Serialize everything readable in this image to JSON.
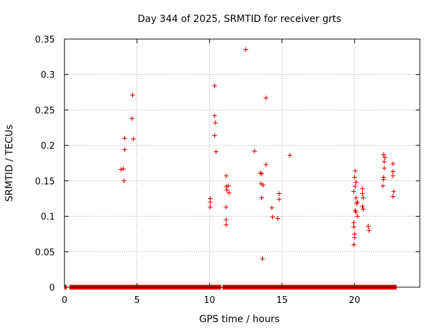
{
  "chart_data": {
    "type": "scatter",
    "title": "Day 344 of 2025, SRMTID for receiver grts",
    "xlabel": "GPS time / hours",
    "ylabel": "SRMTID / TECUs",
    "xlim": [
      0,
      24.5
    ],
    "ylim": [
      0,
      0.35
    ],
    "xticks": [
      0,
      5,
      10,
      15,
      20
    ],
    "yticks": [
      0,
      0.05,
      0.1,
      0.15,
      0.2,
      0.25,
      0.3,
      0.35
    ],
    "xtick_labels": [
      "0",
      "5",
      "10",
      "15",
      "20"
    ],
    "ytick_labels": [
      "0",
      "0.05",
      "0.1",
      "0.15",
      "0.2",
      "0.25",
      "0.3",
      "0.35"
    ],
    "grid": true,
    "marker": "plus",
    "color": "#dd0000",
    "baseline_segments": [
      [
        0,
        0.15
      ],
      [
        0.35,
        10.8
      ],
      [
        10.9,
        22.9
      ]
    ],
    "points": [
      [
        3.9,
        0.166
      ],
      [
        4.05,
        0.167
      ],
      [
        4.1,
        0.15
      ],
      [
        4.15,
        0.194
      ],
      [
        4.15,
        0.21
      ],
      [
        4.65,
        0.238
      ],
      [
        4.7,
        0.271
      ],
      [
        4.75,
        0.209
      ],
      [
        10.05,
        0.125
      ],
      [
        10.05,
        0.12
      ],
      [
        10.05,
        0.113
      ],
      [
        10.35,
        0.284
      ],
      [
        10.35,
        0.242
      ],
      [
        10.4,
        0.232
      ],
      [
        10.35,
        0.214
      ],
      [
        10.45,
        0.191
      ],
      [
        11.15,
        0.157
      ],
      [
        11.15,
        0.142
      ],
      [
        11.2,
        0.137
      ],
      [
        11.3,
        0.143
      ],
      [
        11.35,
        0.133
      ],
      [
        11.15,
        0.113
      ],
      [
        11.15,
        0.095
      ],
      [
        11.15,
        0.088
      ],
      [
        12.5,
        0.335
      ],
      [
        13.1,
        0.192
      ],
      [
        13.5,
        0.161
      ],
      [
        13.6,
        0.16
      ],
      [
        13.55,
        0.146
      ],
      [
        13.7,
        0.144
      ],
      [
        13.6,
        0.126
      ],
      [
        13.65,
        0.04
      ],
      [
        13.9,
        0.267
      ],
      [
        13.9,
        0.173
      ],
      [
        14.3,
        0.112
      ],
      [
        14.35,
        0.099
      ],
      [
        14.7,
        0.097
      ],
      [
        14.8,
        0.132
      ],
      [
        14.8,
        0.124
      ],
      [
        15.55,
        0.186
      ],
      [
        19.95,
        0.135
      ],
      [
        20.0,
        0.155
      ],
      [
        20.05,
        0.164
      ],
      [
        20.1,
        0.148
      ],
      [
        20.05,
        0.142
      ],
      [
        20.1,
        0.126
      ],
      [
        20.15,
        0.118
      ],
      [
        20.05,
        0.108
      ],
      [
        20.1,
        0.106
      ],
      [
        20.2,
        0.1
      ],
      [
        19.95,
        0.091
      ],
      [
        19.95,
        0.085
      ],
      [
        20.0,
        0.075
      ],
      [
        20.0,
        0.07
      ],
      [
        19.95,
        0.06
      ],
      [
        20.2,
        0.12
      ],
      [
        20.55,
        0.139
      ],
      [
        20.55,
        0.132
      ],
      [
        20.6,
        0.126
      ],
      [
        20.55,
        0.114
      ],
      [
        20.6,
        0.11
      ],
      [
        20.95,
        0.086
      ],
      [
        21.0,
        0.08
      ],
      [
        22.0,
        0.187
      ],
      [
        22.1,
        0.183
      ],
      [
        22.05,
        0.177
      ],
      [
        22.05,
        0.168
      ],
      [
        22.0,
        0.155
      ],
      [
        22.0,
        0.152
      ],
      [
        21.95,
        0.143
      ],
      [
        22.65,
        0.174
      ],
      [
        22.65,
        0.163
      ],
      [
        22.65,
        0.157
      ],
      [
        22.7,
        0.135
      ],
      [
        22.65,
        0.128
      ]
    ]
  }
}
